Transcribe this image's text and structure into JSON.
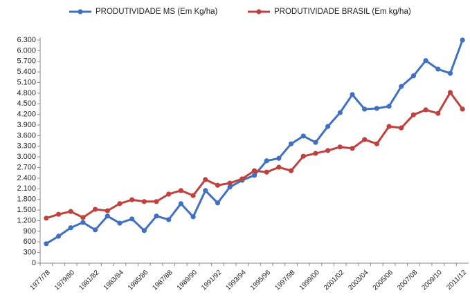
{
  "chart_data": {
    "type": "line",
    "categories": [
      "1977/78",
      null,
      "1979/80",
      null,
      "1981/82",
      null,
      "1983/84",
      null,
      "1985/86",
      null,
      "1987/88",
      null,
      "1989/90",
      null,
      "1991/92",
      null,
      "1993/94",
      null,
      "1995/96",
      null,
      "1997/98",
      null,
      "1999/00",
      null,
      "2001/02",
      null,
      "2003/04",
      null,
      "2005/06",
      null,
      "2007/08",
      null,
      "2009/10",
      null,
      "2011/12"
    ],
    "series": [
      {
        "name": "PRODUTIVIDADE MS (Em Kg/ha)",
        "color": "#3f70c1",
        "values": [
          550,
          760,
          1000,
          1150,
          940,
          1330,
          1130,
          1250,
          920,
          1330,
          1230,
          1680,
          1310,
          2050,
          1700,
          2150,
          2340,
          2480,
          2890,
          2960,
          3370,
          3590,
          3410,
          3860,
          4250,
          4760,
          4350,
          4370,
          4430,
          4990,
          5290,
          5720,
          5480,
          5360,
          6300
        ]
      },
      {
        "name": "PRODUTIVIDADE BRASIL (Em kg/ha)",
        "color": "#c0403d",
        "values": [
          1270,
          1380,
          1460,
          1290,
          1520,
          1480,
          1680,
          1790,
          1740,
          1740,
          1950,
          2050,
          1910,
          2360,
          2200,
          2260,
          2380,
          2610,
          2570,
          2710,
          2610,
          3020,
          3100,
          3180,
          3280,
          3240,
          3490,
          3370,
          3860,
          3820,
          4190,
          4330,
          4230,
          4820,
          4350
        ]
      }
    ],
    "ylim": [
      0,
      6300
    ],
    "yticks": [
      0,
      300,
      600,
      900,
      {
        "value": 1200,
        "label": "1.200"
      },
      {
        "value": 1500,
        "label": "1.500"
      },
      {
        "value": 1800,
        "label": "1.800"
      },
      {
        "value": 2100,
        "label": "2.100"
      },
      {
        "value": 2400,
        "label": "2.400"
      },
      {
        "value": 2700,
        "label": "2.700"
      },
      {
        "value": 3000,
        "label": "3.000"
      },
      {
        "value": 3300,
        "label": "3.300"
      },
      {
        "value": 3600,
        "label": "3.600"
      },
      {
        "value": 3900,
        "label": "3.900"
      },
      {
        "value": 4200,
        "label": "4.200"
      },
      {
        "value": 4500,
        "label": "4.500"
      },
      {
        "value": 4800,
        "label": "4.800"
      },
      {
        "value": 5100,
        "label": "5.100"
      },
      {
        "value": 5400,
        "label": "5.400"
      },
      {
        "value": 5700,
        "label": "5.700"
      },
      {
        "value": 6000,
        "label": "6.000"
      },
      {
        "value": 6300,
        "label": "6.300"
      }
    ],
    "grid": false,
    "legend": "top"
  }
}
